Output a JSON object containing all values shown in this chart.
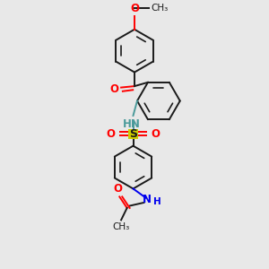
{
  "bg_color": "#e8e8e8",
  "bond_color": "#1a1a1a",
  "oxygen_color": "#ff0000",
  "nitrogen_color": "#4a9a9a",
  "nitrogen_color2": "#0000ee",
  "sulfur_color": "#cccc00",
  "figsize": [
    3.0,
    3.0
  ],
  "dpi": 100,
  "xlim": [
    0,
    10
  ],
  "ylim": [
    0,
    10
  ]
}
